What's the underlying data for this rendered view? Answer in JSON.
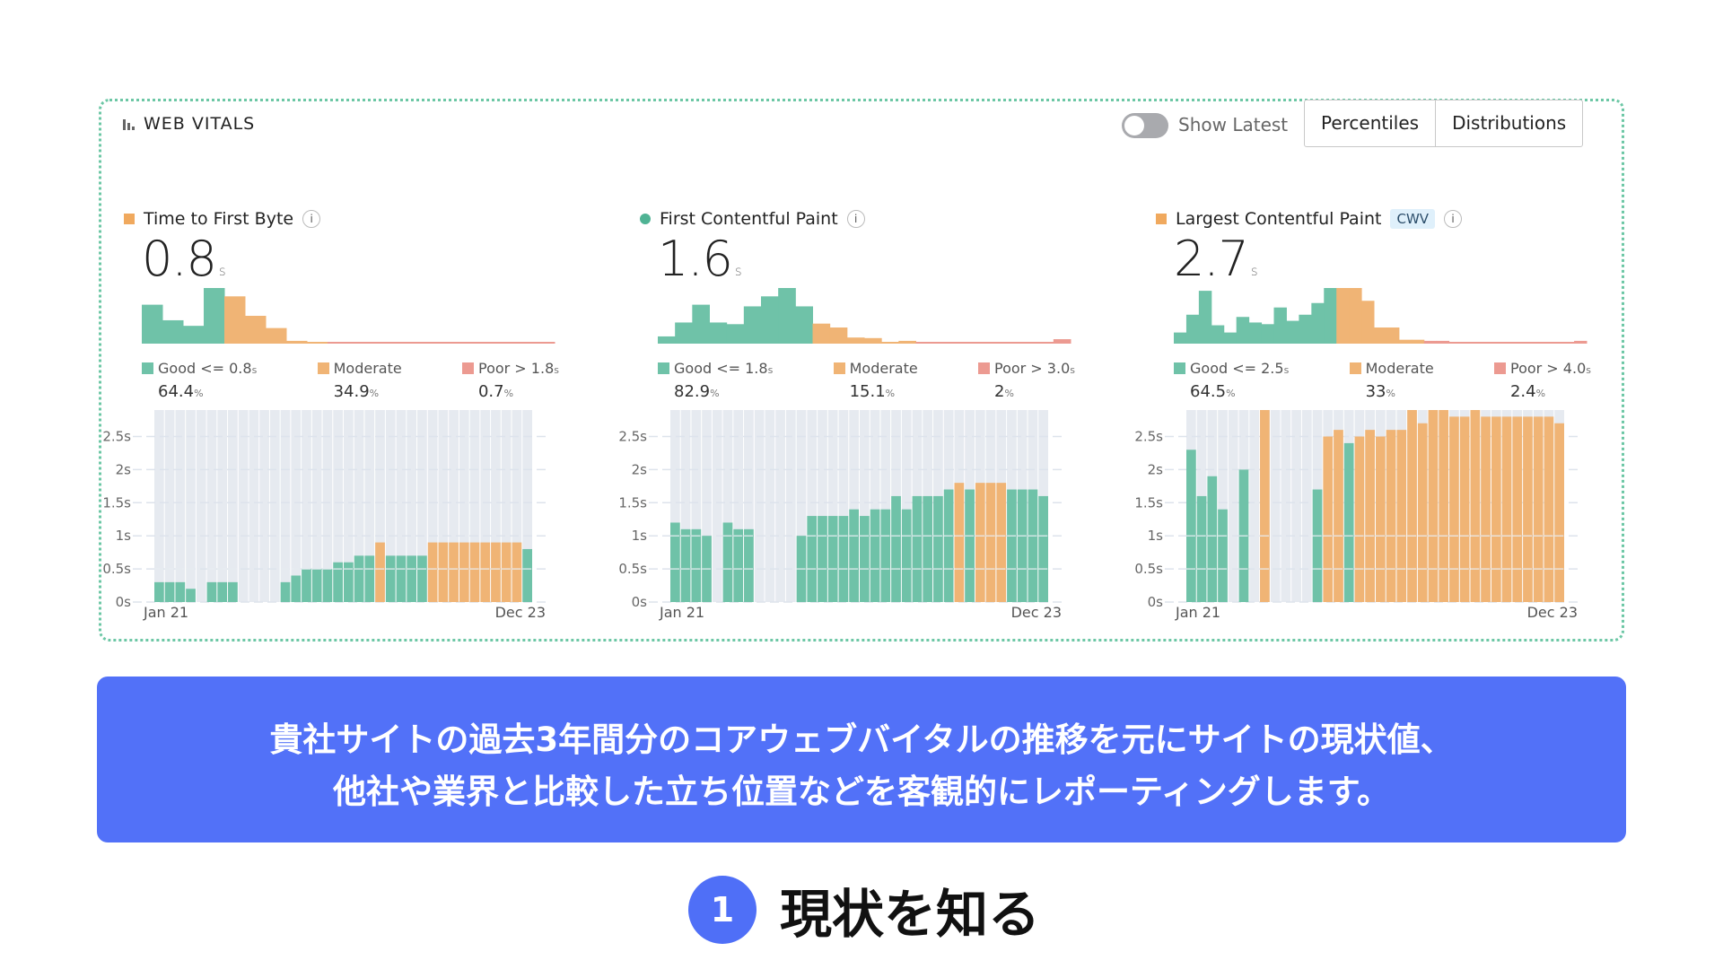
{
  "header": {
    "title": "WEB VITALS",
    "toggle_label": "Show Latest",
    "toggle_on": false,
    "tabs": [
      "Percentiles",
      "Distributions"
    ]
  },
  "colors": {
    "good": "#6fc2a8",
    "moderate": "#f0b475",
    "poor": "#ec9a91",
    "border": "#6cc7a5",
    "banner": "#5271f8"
  },
  "metrics": [
    {
      "name": "Time to First Byte",
      "marker": "square",
      "marker_color": "#f0a95e",
      "value": "0.8",
      "unit": "s",
      "badge": "",
      "legend": [
        {
          "label": "Good <= 0.8",
          "unit": "s",
          "pct": "64.4"
        },
        {
          "label": "Moderate",
          "unit": "",
          "pct": "34.9"
        },
        {
          "label": "Poor > 1.8",
          "unit": "s",
          "pct": "0.7"
        }
      ],
      "histogram": {
        "good": [
          70,
          42,
          32,
          100
        ],
        "moderate": [
          85,
          50,
          28,
          5,
          3
        ],
        "poor": [
          2,
          2,
          2,
          2,
          2,
          2,
          2,
          2,
          2,
          2,
          2
        ]
      }
    },
    {
      "name": "First Contentful Paint",
      "marker": "dot",
      "marker_color": "#4fb394",
      "value": "1.6",
      "unit": "s",
      "badge": "",
      "legend": [
        {
          "label": "Good <= 1.8",
          "unit": "s",
          "pct": "82.9"
        },
        {
          "label": "Moderate",
          "unit": "",
          "pct": "15.1"
        },
        {
          "label": "Poor > 3.0",
          "unit": "s",
          "pct": "2"
        }
      ],
      "histogram": {
        "good": [
          13,
          38,
          70,
          38,
          35,
          67,
          85,
          100,
          67
        ],
        "moderate": [
          36,
          29,
          11,
          10,
          2,
          5
        ],
        "poor": [
          3,
          3,
          3,
          3,
          3,
          2,
          2,
          2,
          8
        ]
      }
    },
    {
      "name": "Largest Contentful Paint",
      "marker": "square",
      "marker_color": "#f0a95e",
      "value": "2.7",
      "unit": "s",
      "badge": "CWV",
      "legend": [
        {
          "label": "Good <= 2.5",
          "unit": "s",
          "pct": "64.5"
        },
        {
          "label": "Moderate",
          "unit": "",
          "pct": "33"
        },
        {
          "label": "Poor > 4.0",
          "unit": "s",
          "pct": "2.4"
        }
      ],
      "histogram": {
        "good": [
          20,
          52,
          95,
          33,
          20,
          48,
          38,
          35,
          65,
          41,
          52,
          73,
          100
        ],
        "moderate": [
          100,
          100,
          77,
          29,
          29,
          7,
          7
        ],
        "poor": [
          5,
          5,
          2,
          2,
          2,
          2,
          2,
          2,
          2,
          2,
          2,
          2,
          5
        ]
      }
    }
  ],
  "chart_data": [
    {
      "type": "bar",
      "title": "Time to First Byte",
      "x_start": "Jan 21",
      "x_end": "Dec 23",
      "ylim": [
        0,
        2.9
      ],
      "y_ticks": [
        "0s",
        "0.5s",
        "1s",
        "1.5s",
        "2s",
        "2.5s"
      ],
      "grid": true,
      "values": [
        0.3,
        0.3,
        0.3,
        0.2,
        null,
        0.3,
        0.3,
        0.3,
        null,
        null,
        null,
        null,
        0.3,
        0.4,
        0.5,
        0.5,
        0.5,
        0.6,
        0.6,
        0.7,
        0.7,
        0.9,
        0.7,
        0.7,
        0.7,
        0.7,
        0.9,
        0.9,
        0.9,
        0.9,
        0.9,
        0.9,
        0.9,
        0.9,
        0.9,
        0.8
      ],
      "good_threshold": 0.8
    },
    {
      "type": "bar",
      "title": "First Contentful Paint",
      "x_start": "Jan 21",
      "x_end": "Dec 23",
      "ylim": [
        0,
        2.9
      ],
      "y_ticks": [
        "0s",
        "0.5s",
        "1s",
        "1.5s",
        "2s",
        "2.5s"
      ],
      "grid": true,
      "values": [
        1.2,
        1.1,
        1.1,
        1.0,
        null,
        1.2,
        1.1,
        1.1,
        null,
        null,
        null,
        null,
        1.0,
        1.3,
        1.3,
        1.3,
        1.3,
        1.4,
        1.3,
        1.4,
        1.4,
        1.6,
        1.4,
        1.6,
        1.6,
        1.6,
        1.7,
        1.8,
        1.7,
        1.8,
        1.8,
        1.8,
        1.7,
        1.7,
        1.7,
        1.6
      ],
      "good_threshold": 1.75
    },
    {
      "type": "bar",
      "title": "Largest Contentful Paint",
      "x_start": "Jan 21",
      "x_end": "Dec 23",
      "ylim": [
        0,
        2.9
      ],
      "y_ticks": [
        "0s",
        "0.5s",
        "1s",
        "1.5s",
        "2s",
        "2.5s"
      ],
      "grid": true,
      "values": [
        2.3,
        1.6,
        1.9,
        1.4,
        null,
        2.0,
        null,
        2.9,
        null,
        null,
        null,
        null,
        1.7,
        2.5,
        2.6,
        2.4,
        2.5,
        2.6,
        2.5,
        2.6,
        2.6,
        2.9,
        2.7,
        2.9,
        2.9,
        2.8,
        2.8,
        2.9,
        2.8,
        2.8,
        2.8,
        2.8,
        2.8,
        2.8,
        2.8,
        2.7
      ],
      "good_threshold": 2.45
    }
  ],
  "banner": {
    "lines": [
      "貴社サイトの過去3年間分のコアウェブバイタルの推移を元にサイトの現状値、",
      "他社や業界と比較した立ち位置などを客観的にレポーティングします。"
    ]
  },
  "step": {
    "number": "1",
    "title": "現状を知る"
  }
}
